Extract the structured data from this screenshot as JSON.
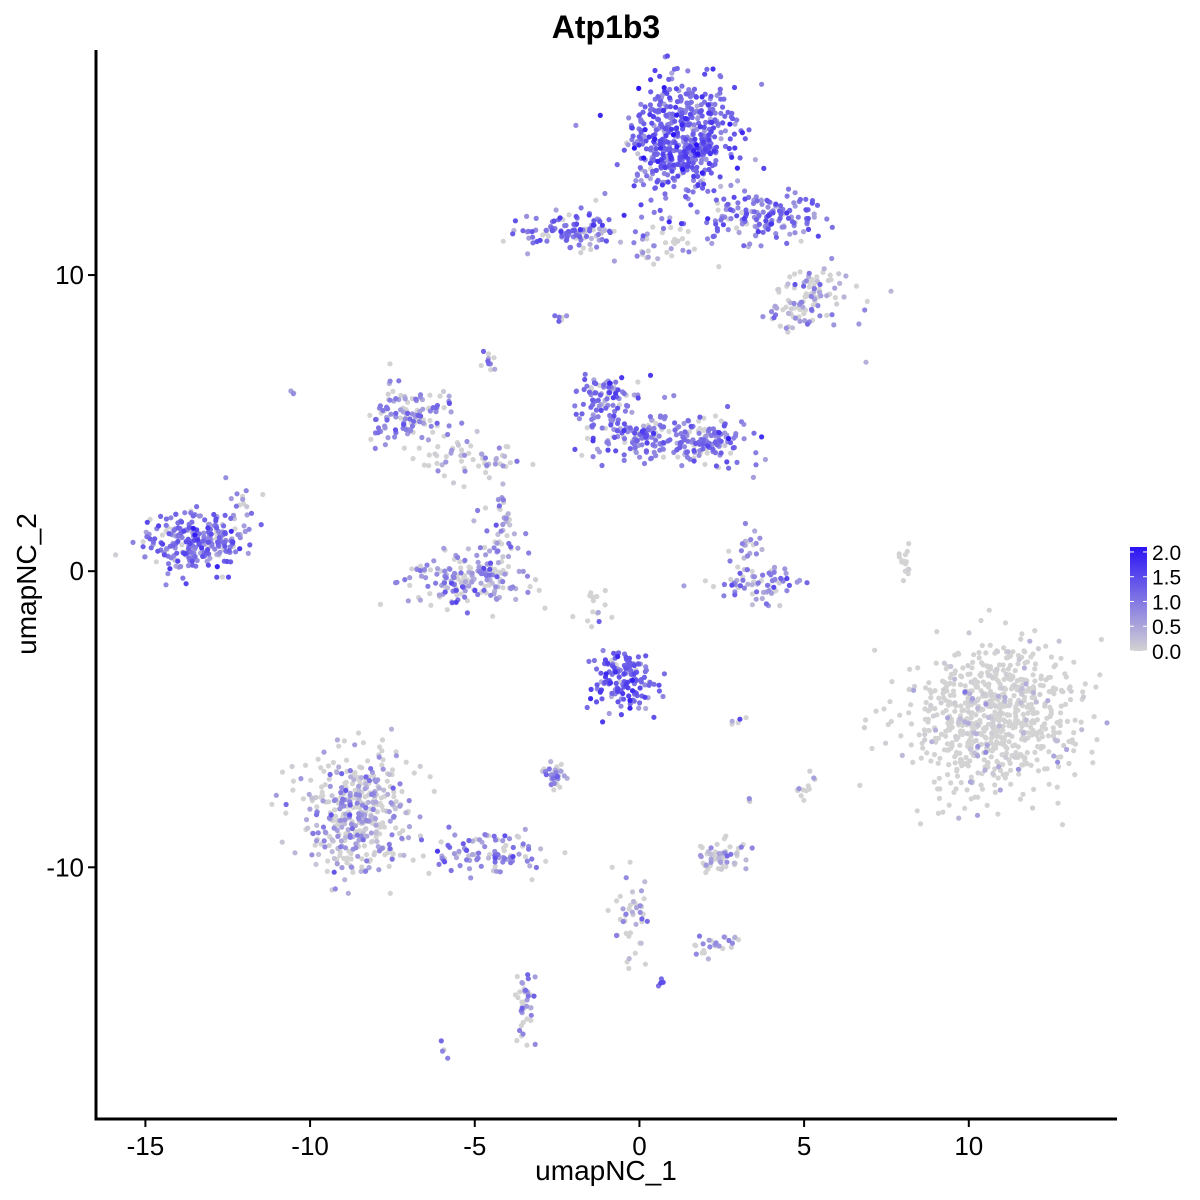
{
  "chart_data": {
    "type": "scatter",
    "title": "Atp1b3",
    "xlabel": "umapNC_1",
    "ylabel": "umapNC_2",
    "xlim": [
      -16.5,
      14.5
    ],
    "ylim": [
      -18.5,
      17.6
    ],
    "x_ticks": [
      -15,
      -10,
      -5,
      0,
      5,
      10
    ],
    "x_tick_labels": [
      "-15",
      "-10",
      "-5",
      "0",
      "5",
      "10"
    ],
    "y_ticks": [
      -10,
      0,
      10
    ],
    "y_tick_labels": [
      "-10",
      "0",
      "10"
    ],
    "grid": false,
    "color_scale": {
      "low_color": "#d3d3d3",
      "high_color": "#2b14f5",
      "min": 0.0,
      "max": 2.1,
      "breaks": [
        2.0,
        1.5,
        1.0,
        0.5,
        0.0
      ],
      "break_labels": [
        "2.0",
        "1.5",
        "1.0",
        "0.5",
        "0.0"
      ],
      "legend_position": "right"
    },
    "clusters": [
      {
        "cx": 1.3,
        "cy": 14.6,
        "sx": 1.0,
        "sy": 1.2,
        "n": 520,
        "expr": 0.95
      },
      {
        "cx": 3.7,
        "cy": 12.0,
        "sx": 1.3,
        "sy": 0.6,
        "n": 160,
        "expr": 0.85
      },
      {
        "cx": -2.0,
        "cy": 11.5,
        "sx": 1.0,
        "sy": 0.4,
        "n": 110,
        "expr": 0.8
      },
      {
        "cx": 0.4,
        "cy": 11.0,
        "sx": 1.0,
        "sy": 0.4,
        "n": 40,
        "expr": 0.4
      },
      {
        "cx": 5.5,
        "cy": 9.5,
        "sx": 0.7,
        "sy": 0.5,
        "n": 70,
        "expr": 0.5
      },
      {
        "cx": 4.7,
        "cy": 8.7,
        "sx": 0.5,
        "sy": 0.4,
        "n": 40,
        "expr": 0.4
      },
      {
        "cx": -7.0,
        "cy": 5.2,
        "sx": 0.8,
        "sy": 0.6,
        "n": 120,
        "expr": 0.6
      },
      {
        "cx": -5.0,
        "cy": 3.8,
        "sx": 1.0,
        "sy": 0.4,
        "n": 60,
        "expr": 0.4
      },
      {
        "cx": -1.0,
        "cy": 5.8,
        "sx": 0.6,
        "sy": 0.6,
        "n": 90,
        "expr": 0.85
      },
      {
        "cx": 0.2,
        "cy": 4.6,
        "sx": 1.3,
        "sy": 0.6,
        "n": 150,
        "expr": 0.8
      },
      {
        "cx": 2.2,
        "cy": 4.3,
        "sx": 0.8,
        "sy": 0.5,
        "n": 110,
        "expr": 0.75
      },
      {
        "cx": -5.2,
        "cy": -0.3,
        "sx": 1.1,
        "sy": 0.6,
        "n": 180,
        "expr": 0.6
      },
      {
        "cx": -4.2,
        "cy": 1.3,
        "sx": 0.4,
        "sy": 0.8,
        "n": 40,
        "expr": 0.6
      },
      {
        "cx": -13.5,
        "cy": 1.0,
        "sx": 0.9,
        "sy": 0.6,
        "n": 260,
        "expr": 0.8
      },
      {
        "cx": 3.6,
        "cy": -0.4,
        "sx": 0.8,
        "sy": 0.4,
        "n": 70,
        "expr": 0.7
      },
      {
        "cx": 3.3,
        "cy": 0.8,
        "sx": 0.3,
        "sy": 0.5,
        "n": 20,
        "expr": 0.6
      },
      {
        "cx": -0.5,
        "cy": -3.6,
        "sx": 0.6,
        "sy": 0.7,
        "n": 150,
        "expr": 0.95
      },
      {
        "cx": 10.8,
        "cy": -5.0,
        "sx": 1.6,
        "sy": 1.5,
        "n": 750,
        "expr": 0.12
      },
      {
        "cx": -8.6,
        "cy": -8.2,
        "sx": 1.0,
        "sy": 1.3,
        "n": 420,
        "expr": 0.45
      },
      {
        "cx": -4.8,
        "cy": -9.5,
        "sx": 1.2,
        "sy": 0.5,
        "n": 100,
        "expr": 0.7
      },
      {
        "cx": -2.5,
        "cy": -6.9,
        "sx": 0.3,
        "sy": 0.25,
        "n": 35,
        "expr": 0.6
      },
      {
        "cx": 2.4,
        "cy": -9.6,
        "sx": 0.5,
        "sy": 0.3,
        "n": 60,
        "expr": 0.45
      },
      {
        "cx": -0.2,
        "cy": -11.5,
        "sx": 0.4,
        "sy": 1.0,
        "n": 45,
        "expr": 0.45
      },
      {
        "cx": 2.2,
        "cy": -12.6,
        "sx": 0.5,
        "sy": 0.3,
        "n": 25,
        "expr": 0.5
      },
      {
        "cx": -3.5,
        "cy": -14.8,
        "sx": 0.2,
        "sy": 0.8,
        "n": 40,
        "expr": 0.55
      },
      {
        "cx": 8.1,
        "cy": 0.3,
        "sx": 0.15,
        "sy": 0.6,
        "n": 15,
        "expr": 0.05
      },
      {
        "cx": 5.0,
        "cy": -7.3,
        "sx": 0.2,
        "sy": 0.3,
        "n": 12,
        "expr": 0.4
      },
      {
        "cx": -1.3,
        "cy": -1.2,
        "sx": 0.6,
        "sy": 0.4,
        "n": 15,
        "expr": 0.15
      },
      {
        "cx": -2.4,
        "cy": 8.5,
        "sx": 0.15,
        "sy": 0.15,
        "n": 6,
        "expr": 0.6
      },
      {
        "cx": -4.6,
        "cy": 7.1,
        "sx": 0.15,
        "sy": 0.25,
        "n": 10,
        "expr": 0.6
      },
      {
        "cx": -12.2,
        "cy": 2.3,
        "sx": 0.4,
        "sy": 0.4,
        "n": 14,
        "expr": 0.6
      },
      {
        "cx": -5.9,
        "cy": -16.2,
        "sx": 0.15,
        "sy": 0.15,
        "n": 4,
        "expr": 0.5
      },
      {
        "cx": 0.6,
        "cy": -13.9,
        "sx": 0.1,
        "sy": 0.1,
        "n": 4,
        "expr": 0.9
      },
      {
        "cx": 2.9,
        "cy": -5.0,
        "sx": 0.15,
        "sy": 0.1,
        "n": 5,
        "expr": 0.5
      },
      {
        "cx": 3.4,
        "cy": -7.7,
        "sx": 0.1,
        "sy": 0.1,
        "n": 4,
        "expr": 0.4
      },
      {
        "cx": 6.9,
        "cy": 7.0,
        "sx": 0.05,
        "sy": 0.05,
        "n": 1,
        "expr": 0.5
      },
      {
        "cx": -10.5,
        "cy": 6.0,
        "sx": 0.1,
        "sy": 0.1,
        "n": 3,
        "expr": 0.6
      }
    ]
  }
}
